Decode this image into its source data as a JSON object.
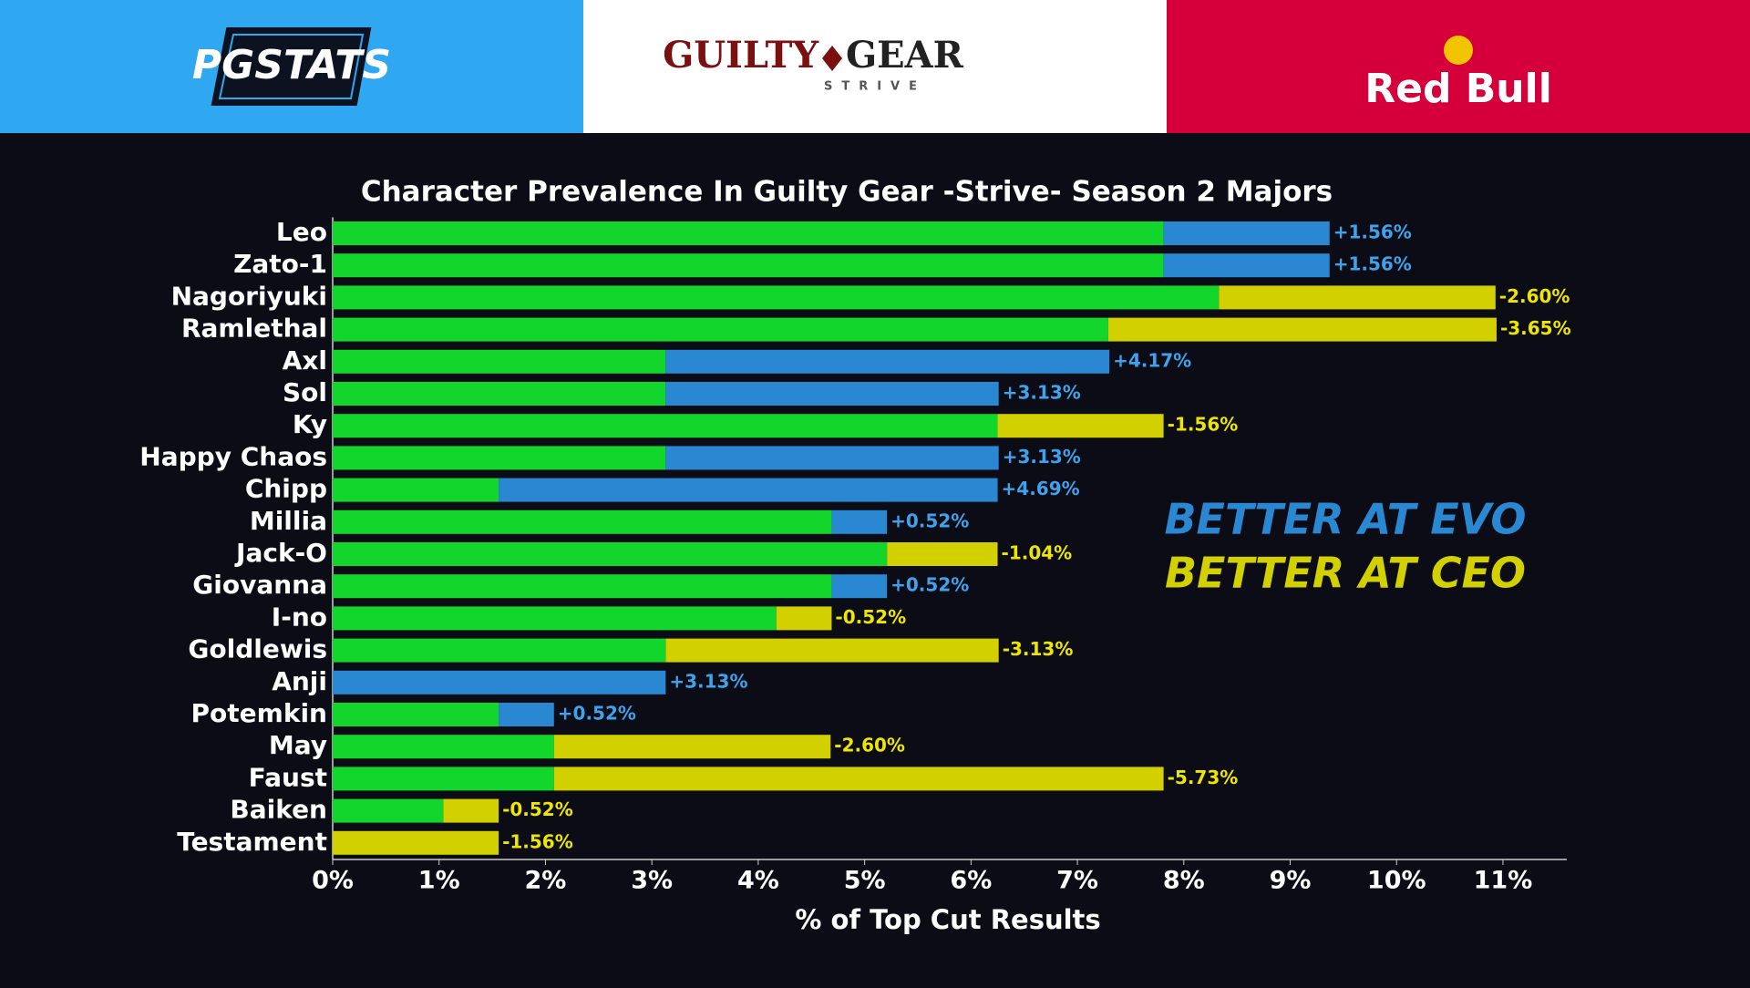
{
  "header": {
    "left_logo": "PGSTATS",
    "center_logo": {
      "word1": "GUILTY",
      "word2": "GEAR",
      "subtitle": "STRIVE"
    },
    "right_logo": "Red Bull"
  },
  "chart_data": {
    "type": "stacked-bar-horizontal",
    "title": "Character Prevalence In Guilty Gear -Strive- Season 2 Majors",
    "x_label": "% of Top Cut Results",
    "categories": [
      "Leo",
      "Zato-1",
      "Nagoriyuki",
      "Ramlethal",
      "Axl",
      "Sol",
      "Ky",
      "Happy Chaos",
      "Chipp",
      "Millia",
      "Jack-O",
      "Giovanna",
      "I-no",
      "Goldlewis",
      "Anji",
      "Potemkin",
      "May",
      "Faust",
      "Baiken",
      "Testament"
    ],
    "series": [
      {
        "color": "#12d62b",
        "values": [
          7.81,
          7.81,
          8.33,
          7.29,
          3.13,
          3.13,
          6.25,
          3.13,
          1.56,
          4.69,
          5.21,
          4.69,
          4.17,
          3.13,
          0,
          1.56,
          2.08,
          2.08,
          1.04,
          0
        ]
      },
      {
        "name": "BETTER AT EVO",
        "color": "#2a88d2",
        "label_color": "#3ea2ec",
        "values": [
          1.56,
          1.56,
          null,
          null,
          4.17,
          3.13,
          null,
          3.13,
          4.69,
          0.52,
          null,
          0.52,
          null,
          null,
          3.13,
          0.52,
          null,
          null,
          null,
          null
        ],
        "value_labels": [
          "+1.56%",
          "+1.56%",
          null,
          null,
          "+4.17%",
          "+3.13%",
          null,
          "+3.13%",
          "+4.69%",
          "+0.52%",
          null,
          "+0.52%",
          null,
          null,
          "+3.13%",
          "+0.52%",
          null,
          null,
          null,
          null
        ]
      },
      {
        "name": "BETTER AT CEO",
        "color": "#d3d000",
        "label_color": "#ece600",
        "values": [
          null,
          null,
          2.6,
          3.65,
          null,
          null,
          1.56,
          null,
          null,
          null,
          1.04,
          null,
          0.52,
          3.13,
          null,
          null,
          2.6,
          5.73,
          0.52,
          1.56
        ],
        "value_labels": [
          null,
          null,
          "-2.60%",
          "-3.65%",
          null,
          null,
          "-1.56%",
          null,
          null,
          null,
          "-1.04%",
          null,
          "-0.52%",
          "-3.13%",
          null,
          null,
          "-2.60%",
          "-5.73%",
          "-0.52%",
          "-1.56%"
        ]
      }
    ],
    "xlim": [
      0,
      11.6
    ],
    "xticks": [
      {
        "value": 0,
        "label": "0%"
      },
      {
        "value": 1,
        "label": "1%"
      },
      {
        "value": 2,
        "label": "2%"
      },
      {
        "value": 3,
        "label": "3%"
      },
      {
        "value": 4,
        "label": "4%"
      },
      {
        "value": 5,
        "label": "5%"
      },
      {
        "value": 6,
        "label": "6%"
      },
      {
        "value": 7,
        "label": "7%"
      },
      {
        "value": 8,
        "label": "8%"
      },
      {
        "value": 9,
        "label": "9%"
      },
      {
        "value": 10,
        "label": "10%"
      },
      {
        "value": 11,
        "label": "11%"
      }
    ]
  }
}
